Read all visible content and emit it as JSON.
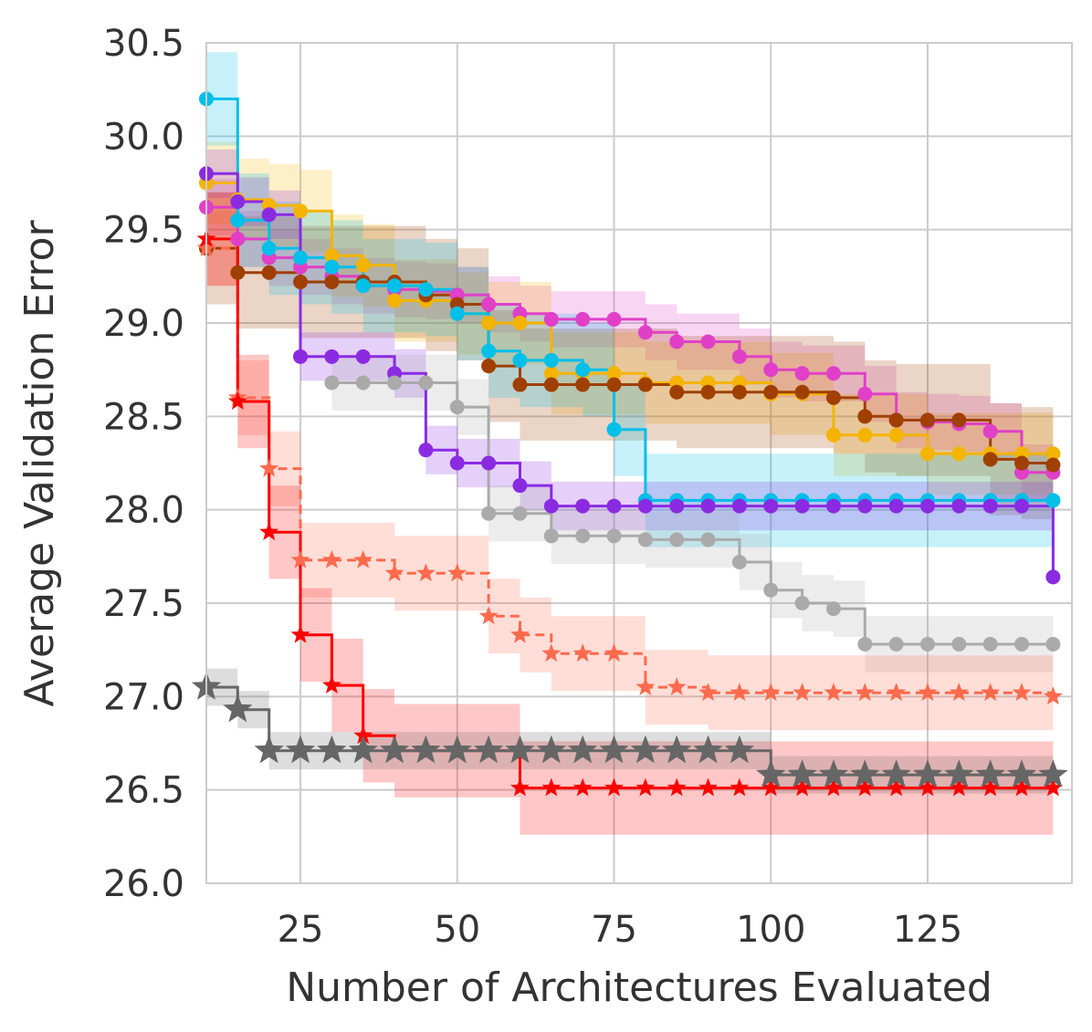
{
  "chart_data": {
    "type": "line",
    "title": "",
    "xlabel": "Number of Architectures Evaluated",
    "ylabel": "Average Validation Error",
    "xlim": [
      10,
      148
    ],
    "ylim": [
      26.0,
      30.5
    ],
    "xticks": [
      25,
      50,
      75,
      100,
      125
    ],
    "yticks": [
      26.0,
      26.5,
      27.0,
      27.5,
      28.0,
      28.5,
      29.0,
      29.5,
      30.0,
      30.5
    ],
    "xtick_labels": [
      "25",
      "50",
      "75",
      "100",
      "125"
    ],
    "ytick_labels": [
      "26.0",
      "26.5",
      "27.0",
      "27.5",
      "28.0",
      "28.5",
      "29.0",
      "29.5",
      "30.0",
      "30.5"
    ],
    "grid": true,
    "legend": "none",
    "series": [
      {
        "name": "magenta",
        "color": "#e040c8",
        "marker": "circle",
        "dashed": false,
        "x": [
          10,
          15,
          20,
          25,
          30,
          35,
          40,
          45,
          50,
          55,
          60,
          65,
          70,
          75,
          80,
          85,
          90,
          95,
          100,
          105,
          110,
          115,
          120,
          125,
          130,
          135,
          140,
          145
        ],
        "y": [
          29.62,
          29.45,
          29.35,
          29.3,
          29.25,
          29.2,
          29.18,
          29.17,
          29.15,
          29.1,
          29.05,
          29.02,
          29.02,
          29.02,
          28.95,
          28.9,
          28.9,
          28.82,
          28.75,
          28.73,
          28.73,
          28.62,
          28.48,
          28.47,
          28.46,
          28.42,
          28.2,
          28.2
        ],
        "band": 0.15
      },
      {
        "name": "yellow",
        "color": "#f4b400",
        "marker": "circle",
        "dashed": false,
        "x": [
          10,
          15,
          20,
          25,
          30,
          35,
          40,
          45,
          50,
          55,
          60,
          65,
          70,
          75,
          80,
          85,
          90,
          95,
          100,
          105,
          110,
          115,
          120,
          125,
          130,
          135,
          140,
          145
        ],
        "y": [
          29.75,
          29.66,
          29.63,
          29.6,
          29.36,
          29.31,
          29.12,
          29.12,
          29.05,
          29.0,
          29.0,
          28.73,
          28.73,
          28.73,
          28.68,
          28.68,
          28.68,
          28.68,
          28.62,
          28.62,
          28.4,
          28.4,
          28.4,
          28.3,
          28.3,
          28.3,
          28.3,
          28.3
        ],
        "band": 0.22
      },
      {
        "name": "brown",
        "color": "#a04000",
        "marker": "circle",
        "dashed": false,
        "x": [
          10,
          15,
          20,
          25,
          30,
          35,
          40,
          45,
          50,
          55,
          60,
          65,
          70,
          75,
          80,
          85,
          90,
          95,
          100,
          105,
          110,
          115,
          120,
          125,
          130,
          135,
          140,
          145
        ],
        "y": [
          29.4,
          29.27,
          29.27,
          29.22,
          29.22,
          29.22,
          29.22,
          29.15,
          29.1,
          28.77,
          28.67,
          28.67,
          28.67,
          28.67,
          28.67,
          28.63,
          28.63,
          28.63,
          28.63,
          28.63,
          28.6,
          28.5,
          28.48,
          28.48,
          28.48,
          28.27,
          28.25,
          28.24
        ],
        "band": 0.3
      },
      {
        "name": "cyan",
        "color": "#00bfe8",
        "marker": "circle",
        "dashed": false,
        "x": [
          10,
          15,
          20,
          25,
          30,
          35,
          40,
          45,
          50,
          55,
          60,
          65,
          70,
          75,
          80,
          85,
          90,
          95,
          100,
          105,
          110,
          115,
          120,
          125,
          130,
          135,
          140,
          145
        ],
        "y": [
          30.2,
          29.55,
          29.4,
          29.35,
          29.3,
          29.2,
          29.2,
          29.18,
          29.05,
          28.85,
          28.8,
          28.8,
          28.75,
          28.43,
          28.05,
          28.05,
          28.05,
          28.05,
          28.05,
          28.05,
          28.05,
          28.05,
          28.05,
          28.05,
          28.05,
          28.05,
          28.05,
          28.05
        ],
        "band": 0.25
      },
      {
        "name": "purple",
        "color": "#8a2be2",
        "marker": "circle",
        "dashed": false,
        "x": [
          10,
          15,
          20,
          25,
          30,
          35,
          40,
          45,
          50,
          55,
          60,
          65,
          70,
          75,
          80,
          85,
          90,
          95,
          100,
          105,
          110,
          115,
          120,
          125,
          130,
          135,
          140,
          145
        ],
        "y": [
          29.8,
          29.65,
          29.58,
          28.82,
          28.82,
          28.82,
          28.73,
          28.32,
          28.25,
          28.25,
          28.13,
          28.02,
          28.02,
          28.02,
          28.02,
          28.02,
          28.02,
          28.02,
          28.02,
          28.02,
          28.02,
          28.02,
          28.02,
          28.02,
          28.02,
          28.02,
          28.02,
          27.64
        ],
        "band": 0.13
      },
      {
        "name": "gray",
        "color": "#aaaaaa",
        "marker": "circle",
        "dashed": false,
        "x": [
          30,
          35,
          40,
          45,
          50,
          55,
          60,
          65,
          70,
          75,
          80,
          85,
          90,
          95,
          100,
          105,
          110,
          115,
          120,
          125,
          130,
          135,
          140,
          145
        ],
        "y": [
          28.68,
          28.68,
          28.68,
          28.68,
          28.55,
          27.98,
          27.98,
          27.86,
          27.86,
          27.86,
          27.84,
          27.84,
          27.84,
          27.72,
          27.57,
          27.5,
          27.47,
          27.28,
          27.28,
          27.28,
          27.28,
          27.28,
          27.28,
          27.28
        ],
        "band": 0.15
      },
      {
        "name": "salmon",
        "color": "#ff6a4d",
        "marker": "star",
        "dashed": true,
        "x": [
          10,
          15,
          20,
          25,
          30,
          35,
          40,
          45,
          50,
          55,
          60,
          65,
          70,
          75,
          80,
          85,
          90,
          95,
          100,
          105,
          110,
          115,
          120,
          125,
          130,
          135,
          140,
          145
        ],
        "y": [
          29.4,
          28.6,
          28.22,
          27.73,
          27.73,
          27.73,
          27.66,
          27.66,
          27.66,
          27.43,
          27.33,
          27.23,
          27.23,
          27.23,
          27.05,
          27.05,
          27.02,
          27.02,
          27.02,
          27.02,
          27.02,
          27.02,
          27.02,
          27.02,
          27.02,
          27.02,
          27.02,
          27.0
        ],
        "band": 0.2
      },
      {
        "name": "red",
        "color": "#ff0000",
        "marker": "star",
        "dashed": false,
        "x": [
          10,
          15,
          20,
          25,
          30,
          35,
          40,
          45,
          50,
          55,
          60,
          65,
          70,
          75,
          80,
          85,
          90,
          95,
          100,
          105,
          110,
          115,
          120,
          125,
          130,
          135,
          140,
          145
        ],
        "y": [
          29.45,
          28.58,
          27.88,
          27.33,
          27.06,
          26.79,
          26.71,
          26.71,
          26.71,
          26.71,
          26.51,
          26.51,
          26.51,
          26.51,
          26.51,
          26.51,
          26.51,
          26.51,
          26.51,
          26.51,
          26.51,
          26.51,
          26.51,
          26.51,
          26.51,
          26.51,
          26.51,
          26.51
        ],
        "band": 0.25
      },
      {
        "name": "dark-gray",
        "color": "#666666",
        "marker": "star-large",
        "dashed": false,
        "x": [
          10,
          15,
          20,
          25,
          30,
          35,
          40,
          45,
          50,
          55,
          60,
          65,
          70,
          75,
          80,
          85,
          90,
          95,
          100,
          105,
          110,
          115,
          120,
          125,
          130,
          135,
          140,
          145
        ],
        "y": [
          27.05,
          26.93,
          26.71,
          26.71,
          26.71,
          26.71,
          26.71,
          26.71,
          26.71,
          26.71,
          26.71,
          26.71,
          26.71,
          26.71,
          26.71,
          26.71,
          26.71,
          26.71,
          26.58,
          26.58,
          26.58,
          26.58,
          26.58,
          26.58,
          26.58,
          26.58,
          26.58,
          26.58
        ],
        "band": 0.1
      }
    ]
  }
}
